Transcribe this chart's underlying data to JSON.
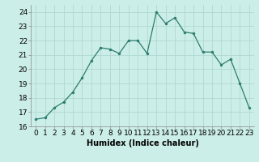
{
  "x": [
    0,
    1,
    2,
    3,
    4,
    5,
    6,
    7,
    8,
    9,
    10,
    11,
    12,
    13,
    14,
    15,
    16,
    17,
    18,
    19,
    20,
    21,
    22,
    23
  ],
  "y": [
    16.5,
    16.6,
    17.3,
    17.7,
    18.4,
    19.4,
    20.6,
    21.5,
    21.4,
    21.1,
    22.0,
    22.0,
    21.1,
    24.0,
    23.2,
    23.6,
    22.6,
    22.5,
    21.2,
    21.2,
    20.3,
    20.7,
    19.0,
    17.3
  ],
  "line_color": "#2d7d6e",
  "marker_color": "#2d7d6e",
  "bg_color": "#cceee8",
  "grid_color": "#b0d8d2",
  "xlabel": "Humidex (Indice chaleur)",
  "xlim": [
    -0.5,
    23.5
  ],
  "ylim": [
    16,
    24.5
  ],
  "yticks": [
    16,
    17,
    18,
    19,
    20,
    21,
    22,
    23,
    24
  ],
  "xticks": [
    0,
    1,
    2,
    3,
    4,
    5,
    6,
    7,
    8,
    9,
    10,
    11,
    12,
    13,
    14,
    15,
    16,
    17,
    18,
    19,
    20,
    21,
    22,
    23
  ],
  "xlabel_fontsize": 7,
  "tick_fontsize": 6.5
}
